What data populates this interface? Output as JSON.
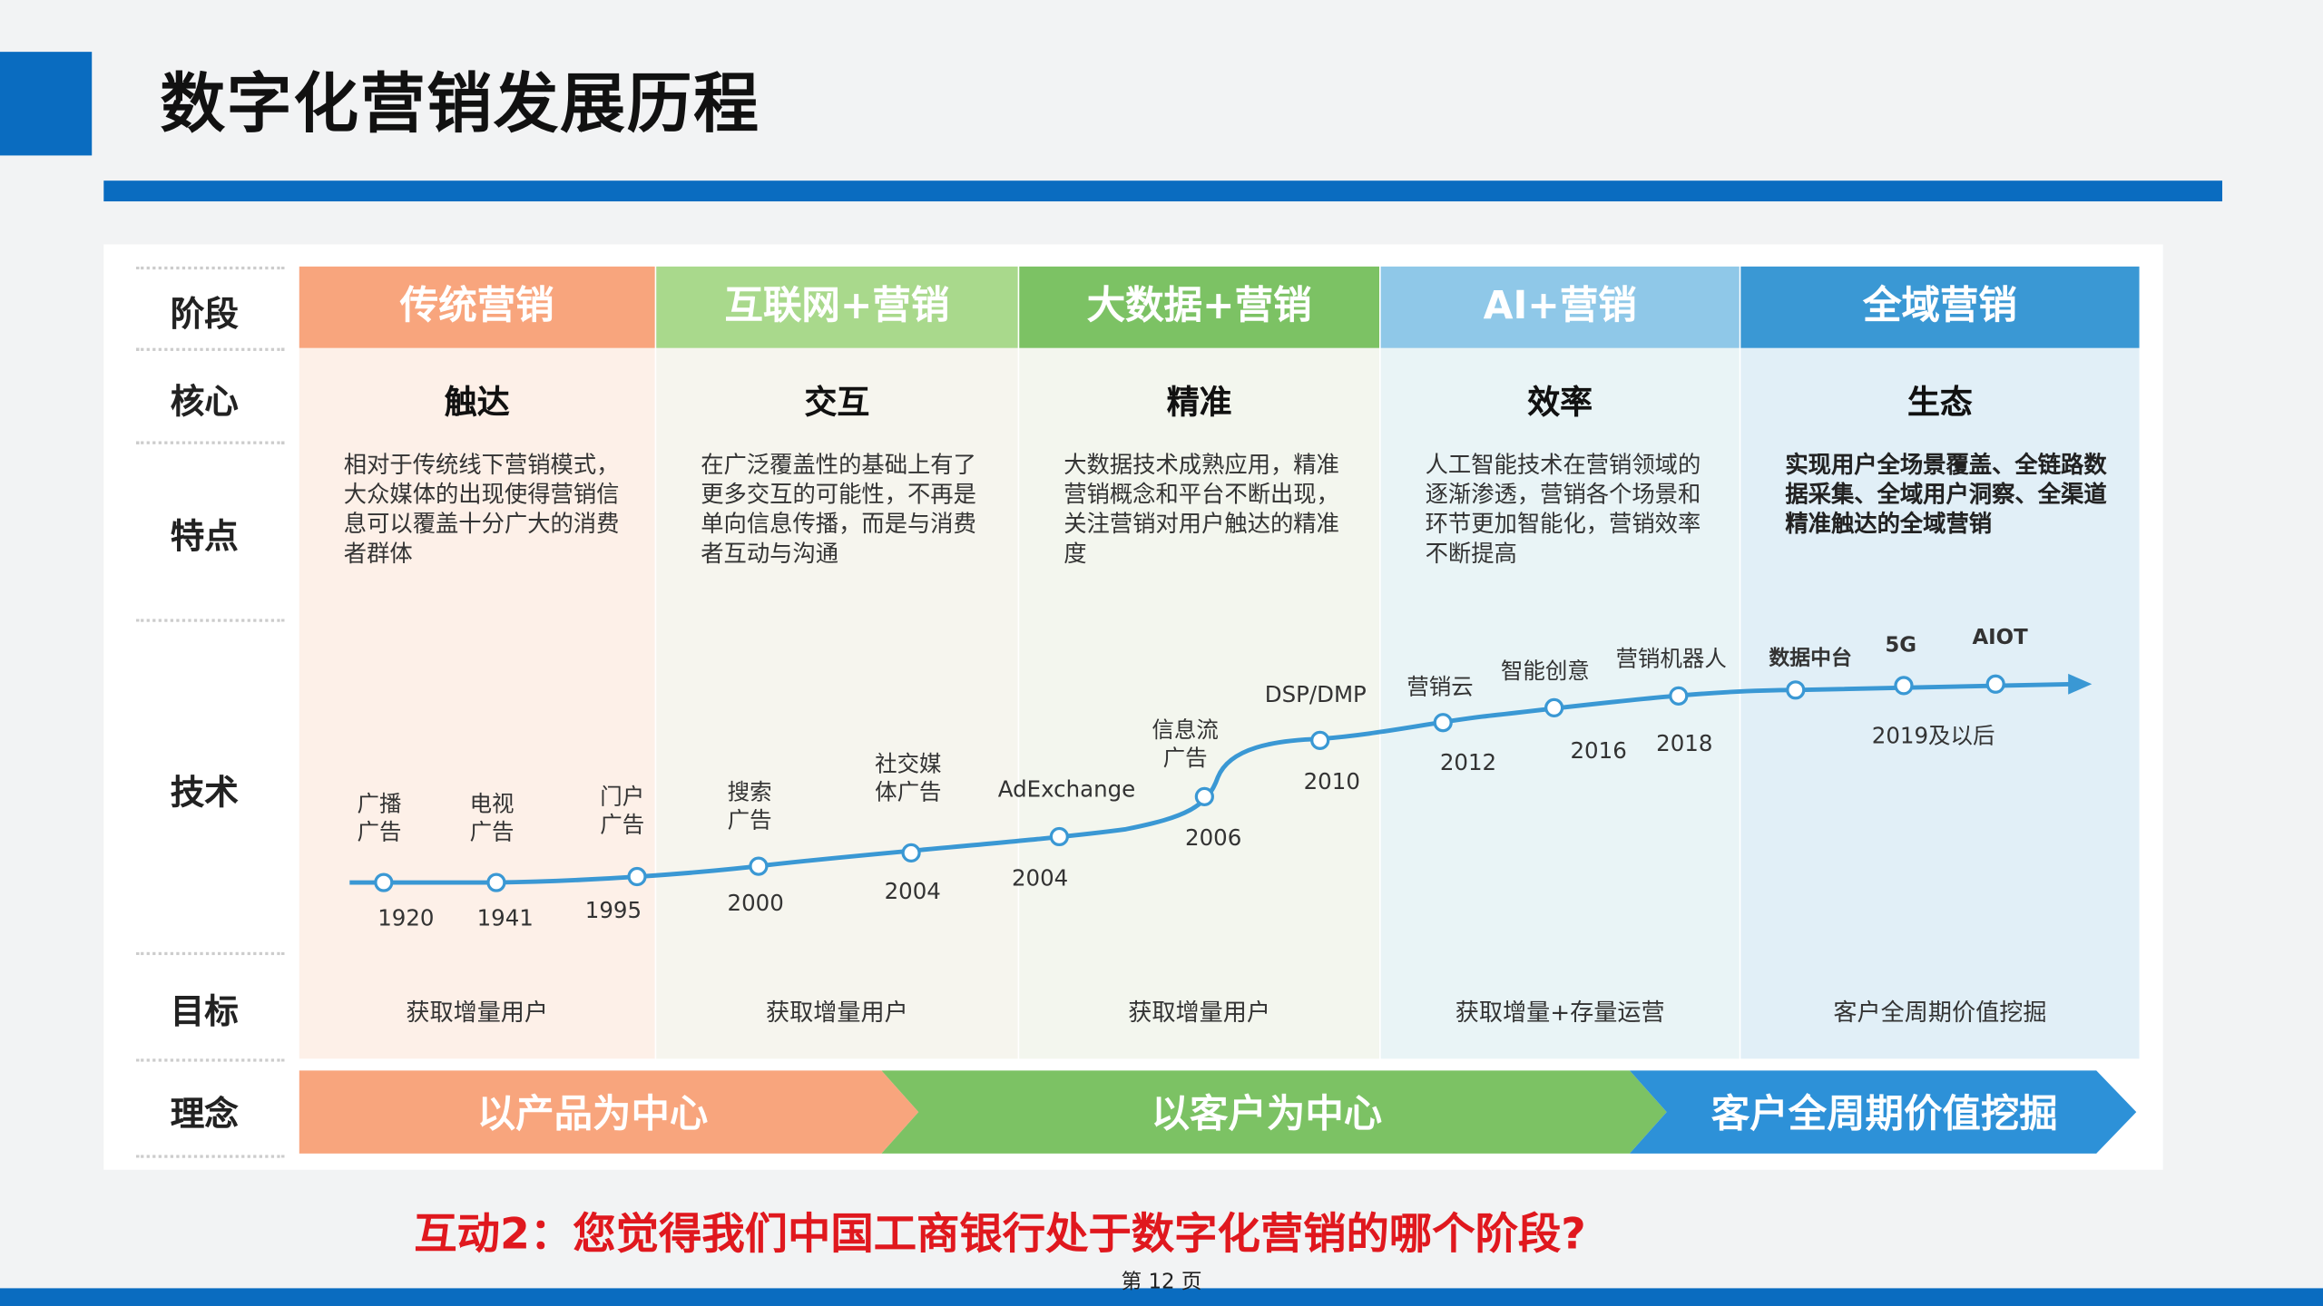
{
  "header": {
    "title": "数字化营销发展历程"
  },
  "row_labels": [
    "阶段",
    "核心",
    "特点",
    "技术",
    "目标",
    "理念"
  ],
  "stages": [
    {
      "name": "传统营销",
      "core": "触达",
      "feature": "相对于传统线下营销模式，大众媒体的出现使得营销信息可以覆盖十分广大的消费者群体",
      "goal": "获取增量用户"
    },
    {
      "name": "互联网+营销",
      "core": "交互",
      "feature": "在广泛覆盖性的基础上有了更多交互的可能性，不再是单向信息传播，而是与消费者互动与沟通",
      "goal": "获取增量用户"
    },
    {
      "name": "大数据+营销",
      "core": "精准",
      "feature": "大数据技术成熟应用，精准营销概念和平台不断出现，关注营销对用户触达的精准度",
      "goal": "获取增量用户"
    },
    {
      "name": "AI+营销",
      "core": "效率",
      "feature": "人工智能技术在营销领域的逐渐渗透，营销各个场景和环节更加智能化，营销效率不断提高",
      "goal": "获取增量+存量运营"
    },
    {
      "name": "全域营销",
      "core": "生态",
      "feature": "实现用户全场景覆盖、全链路数据采集、全域用户洞察、全渠道精准触达的全域营销",
      "goal": "客户全周期价值挖掘"
    }
  ],
  "tech": {
    "nodes": [
      {
        "label": [
          "广播",
          "广告"
        ],
        "year": "1920"
      },
      {
        "label": [
          "电视",
          "广告"
        ],
        "year": "1941"
      },
      {
        "label": [
          "门户",
          "广告"
        ],
        "year": "1995"
      },
      {
        "label": [
          "搜索",
          "广告"
        ],
        "year": "2000"
      },
      {
        "label": [
          "社交媒",
          "体广告"
        ],
        "year": "2004"
      },
      {
        "label": [
          "AdExchange"
        ],
        "year": "2004"
      },
      {
        "label": [
          "信息流",
          "广告"
        ],
        "year": "2006"
      },
      {
        "label": [
          "DSP/DMP"
        ],
        "year": "2010"
      },
      {
        "label": [
          "营销云"
        ],
        "year": "2012"
      },
      {
        "label": [
          "智能创意"
        ],
        "year": "2016"
      },
      {
        "label": [
          "营销机器人"
        ],
        "year": "2018"
      },
      {
        "label": [
          "数据中台"
        ]
      },
      {
        "label": [
          "5G"
        ]
      },
      {
        "label": [
          "AIOT"
        ]
      }
    ],
    "year_note": "2019及以后"
  },
  "philosophy": [
    "以产品为中心",
    "以客户为中心",
    "客户全周期价值挖掘"
  ],
  "question": "互动2：您觉得我们中国工商银行处于数字化营销的哪个阶段?",
  "footer": {
    "page": "第 12 页"
  }
}
